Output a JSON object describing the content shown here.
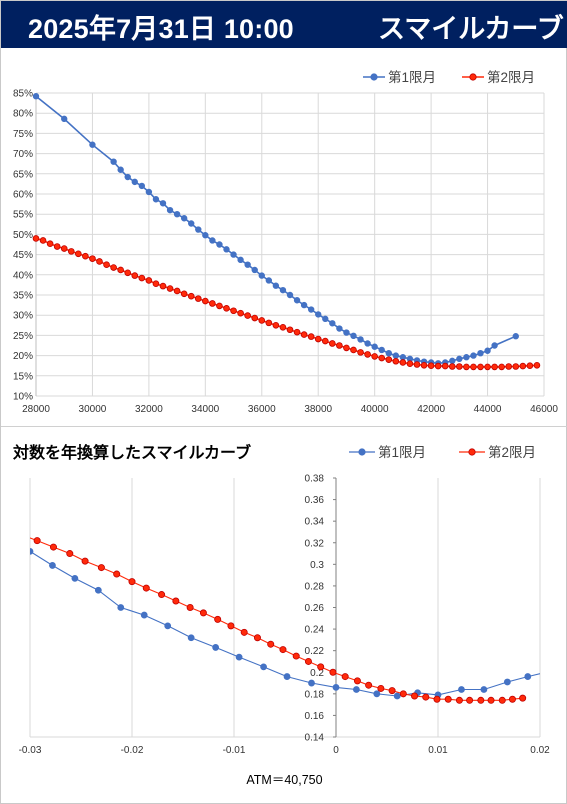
{
  "header": {
    "date": "2025年7月31日 10:00",
    "title": "スマイルカーブ"
  },
  "colors": {
    "header_bg": "#002060",
    "series1": "#4472C4",
    "series2": "#FF2A0A",
    "series2_edge": "#C00000"
  },
  "chart_data": [
    {
      "type": "line",
      "title": "",
      "xlabel": "",
      "ylabel": "",
      "xlim": [
        28000,
        46000
      ],
      "ylim": [
        0.1,
        0.85
      ],
      "x_ticks": [
        "28000",
        "30000",
        "32000",
        "34000",
        "36000",
        "38000",
        "40000",
        "42000",
        "44000",
        "46000"
      ],
      "y_ticks": [
        "10%",
        "15%",
        "20%",
        "25%",
        "30%",
        "35%",
        "40%",
        "45%",
        "50%",
        "55%",
        "60%",
        "65%",
        "70%",
        "75%",
        "80%",
        "85%"
      ],
      "legend": "top-right",
      "grid": true,
      "series": [
        {
          "name": "第1限月",
          "points": [
            [
              28000,
              0.842
            ],
            [
              29000,
              0.786
            ],
            [
              30000,
              0.722
            ],
            [
              30750,
              0.68
            ],
            [
              31000,
              0.66
            ],
            [
              31250,
              0.642
            ],
            [
              31500,
              0.63
            ],
            [
              31750,
              0.62
            ],
            [
              32000,
              0.605
            ],
            [
              32250,
              0.587
            ],
            [
              32500,
              0.577
            ],
            [
              32750,
              0.56
            ],
            [
              33000,
              0.55
            ],
            [
              33250,
              0.54
            ],
            [
              33500,
              0.527
            ],
            [
              33750,
              0.512
            ],
            [
              34000,
              0.498
            ],
            [
              34250,
              0.485
            ],
            [
              34500,
              0.475
            ],
            [
              34750,
              0.463
            ],
            [
              35000,
              0.45
            ],
            [
              35250,
              0.437
            ],
            [
              35500,
              0.425
            ],
            [
              35750,
              0.412
            ],
            [
              36000,
              0.398
            ],
            [
              36250,
              0.386
            ],
            [
              36500,
              0.373
            ],
            [
              36750,
              0.362
            ],
            [
              37000,
              0.35
            ],
            [
              37250,
              0.337
            ],
            [
              37500,
              0.325
            ],
            [
              37750,
              0.314
            ],
            [
              38000,
              0.302
            ],
            [
              38250,
              0.291
            ],
            [
              38500,
              0.28
            ],
            [
              38750,
              0.267
            ],
            [
              39000,
              0.257
            ],
            [
              39250,
              0.249
            ],
            [
              39500,
              0.24
            ],
            [
              39750,
              0.23
            ],
            [
              40000,
              0.222
            ],
            [
              40250,
              0.214
            ],
            [
              40500,
              0.206
            ],
            [
              40750,
              0.2
            ],
            [
              41000,
              0.196
            ],
            [
              41250,
              0.192
            ],
            [
              41500,
              0.188
            ],
            [
              41750,
              0.185
            ],
            [
              42000,
              0.183
            ],
            [
              42250,
              0.181
            ],
            [
              42500,
              0.183
            ],
            [
              42750,
              0.187
            ],
            [
              43000,
              0.192
            ],
            [
              43250,
              0.196
            ],
            [
              43500,
              0.2
            ],
            [
              43750,
              0.206
            ],
            [
              44000,
              0.212
            ],
            [
              44250,
              0.225
            ],
            [
              45000,
              0.248
            ]
          ]
        },
        {
          "name": "第2限月",
          "points": [
            [
              28000,
              0.49
            ],
            [
              28250,
              0.485
            ],
            [
              28500,
              0.477
            ],
            [
              28750,
              0.47
            ],
            [
              29000,
              0.465
            ],
            [
              29250,
              0.458
            ],
            [
              29500,
              0.452
            ],
            [
              29750,
              0.446
            ],
            [
              30000,
              0.44
            ],
            [
              30250,
              0.433
            ],
            [
              30500,
              0.425
            ],
            [
              30750,
              0.418
            ],
            [
              31000,
              0.412
            ],
            [
              31250,
              0.405
            ],
            [
              31500,
              0.398
            ],
            [
              31750,
              0.392
            ],
            [
              32000,
              0.386
            ],
            [
              32250,
              0.378
            ],
            [
              32500,
              0.372
            ],
            [
              32750,
              0.366
            ],
            [
              33000,
              0.36
            ],
            [
              33250,
              0.353
            ],
            [
              33500,
              0.347
            ],
            [
              33750,
              0.341
            ],
            [
              34000,
              0.335
            ],
            [
              34250,
              0.329
            ],
            [
              34500,
              0.323
            ],
            [
              34750,
              0.317
            ],
            [
              35000,
              0.311
            ],
            [
              35250,
              0.305
            ],
            [
              35500,
              0.299
            ],
            [
              35750,
              0.293
            ],
            [
              36000,
              0.287
            ],
            [
              36250,
              0.281
            ],
            [
              36500,
              0.275
            ],
            [
              36750,
              0.27
            ],
            [
              37000,
              0.264
            ],
            [
              37250,
              0.258
            ],
            [
              37500,
              0.252
            ],
            [
              37750,
              0.247
            ],
            [
              38000,
              0.241
            ],
            [
              38250,
              0.236
            ],
            [
              38500,
              0.23
            ],
            [
              38750,
              0.225
            ],
            [
              39000,
              0.219
            ],
            [
              39250,
              0.214
            ],
            [
              39500,
              0.208
            ],
            [
              39750,
              0.203
            ],
            [
              40000,
              0.198
            ],
            [
              40250,
              0.194
            ],
            [
              40500,
              0.19
            ],
            [
              40750,
              0.186
            ],
            [
              41000,
              0.183
            ],
            [
              41250,
              0.18
            ],
            [
              41500,
              0.178
            ],
            [
              41750,
              0.176
            ],
            [
              42000,
              0.175
            ],
            [
              42250,
              0.174
            ],
            [
              42500,
              0.174
            ],
            [
              42750,
              0.173
            ],
            [
              43000,
              0.173
            ],
            [
              43250,
              0.172
            ],
            [
              43500,
              0.172
            ],
            [
              43750,
              0.172
            ],
            [
              44000,
              0.172
            ],
            [
              44250,
              0.172
            ],
            [
              44500,
              0.172
            ],
            [
              44750,
              0.173
            ],
            [
              45000,
              0.173
            ],
            [
              45250,
              0.174
            ],
            [
              45500,
              0.175
            ],
            [
              45750,
              0.176
            ]
          ]
        }
      ]
    },
    {
      "type": "line",
      "title": "対数を年換算したスマイルカーブ",
      "xlabel": "ATM＝40,750",
      "ylabel": "",
      "xlim": [
        -0.03,
        0.02
      ],
      "ylim": [
        0.14,
        0.38
      ],
      "x_ticks": [
        "-0.03",
        "-0.02",
        "-0.01",
        "0",
        "0.01",
        "0.02"
      ],
      "y_ticks": [
        "0.14",
        "0.16",
        "0.18",
        "0.2",
        "0.22",
        "0.24",
        "0.26",
        "0.28",
        "0.3",
        "0.32",
        "0.34",
        "0.36",
        "0.38"
      ],
      "legend": "top-right",
      "grid": true,
      "series": [
        {
          "name": "第1限月",
          "points": [
            [
              -0.03,
              0.312
            ],
            [
              -0.0278,
              0.299
            ],
            [
              -0.0256,
              0.287
            ],
            [
              -0.0233,
              0.276
            ],
            [
              -0.0211,
              0.26
            ],
            [
              -0.0188,
              0.253
            ],
            [
              -0.0165,
              0.243
            ],
            [
              -0.0142,
              0.232
            ],
            [
              -0.0118,
              0.223
            ],
            [
              -0.0095,
              0.214
            ],
            [
              -0.0071,
              0.205
            ],
            [
              -0.0048,
              0.196
            ],
            [
              -0.0024,
              0.19
            ],
            [
              0.0,
              0.186
            ],
            [
              0.002,
              0.184
            ],
            [
              0.004,
              0.18
            ],
            [
              0.006,
              0.178
            ],
            [
              0.008,
              0.181
            ],
            [
              0.01,
              0.179
            ],
            [
              0.0123,
              0.184
            ],
            [
              0.0145,
              0.184
            ],
            [
              0.0168,
              0.191
            ],
            [
              0.0188,
              0.196
            ],
            [
              0.021,
              0.201
            ]
          ]
        },
        {
          "name": "第2限月",
          "points": [
            [
              -0.031,
              0.328
            ],
            [
              -0.0293,
              0.322
            ],
            [
              -0.0277,
              0.316
            ],
            [
              -0.0261,
              0.31
            ],
            [
              -0.0246,
              0.303
            ],
            [
              -0.023,
              0.297
            ],
            [
              -0.0215,
              0.291
            ],
            [
              -0.02,
              0.284
            ],
            [
              -0.0186,
              0.278
            ],
            [
              -0.0171,
              0.272
            ],
            [
              -0.0157,
              0.266
            ],
            [
              -0.0143,
              0.26
            ],
            [
              -0.013,
              0.255
            ],
            [
              -0.0116,
              0.249
            ],
            [
              -0.0103,
              0.243
            ],
            [
              -0.009,
              0.237
            ],
            [
              -0.0077,
              0.232
            ],
            [
              -0.0064,
              0.226
            ],
            [
              -0.0052,
              0.221
            ],
            [
              -0.0039,
              0.215
            ],
            [
              -0.0027,
              0.21
            ],
            [
              -0.0015,
              0.205
            ],
            [
              -0.0003,
              0.2
            ],
            [
              0.0009,
              0.196
            ],
            [
              0.0021,
              0.192
            ],
            [
              0.0032,
              0.188
            ],
            [
              0.0044,
              0.185
            ],
            [
              0.0055,
              0.183
            ],
            [
              0.0066,
              0.18
            ],
            [
              0.0077,
              0.178
            ],
            [
              0.0088,
              0.177
            ],
            [
              0.0099,
              0.175
            ],
            [
              0.011,
              0.175
            ],
            [
              0.0121,
              0.174
            ],
            [
              0.0131,
              0.174
            ],
            [
              0.0142,
              0.174
            ],
            [
              0.0152,
              0.174
            ],
            [
              0.0163,
              0.174
            ],
            [
              0.0173,
              0.175
            ],
            [
              0.0183,
              0.176
            ]
          ]
        }
      ]
    }
  ]
}
